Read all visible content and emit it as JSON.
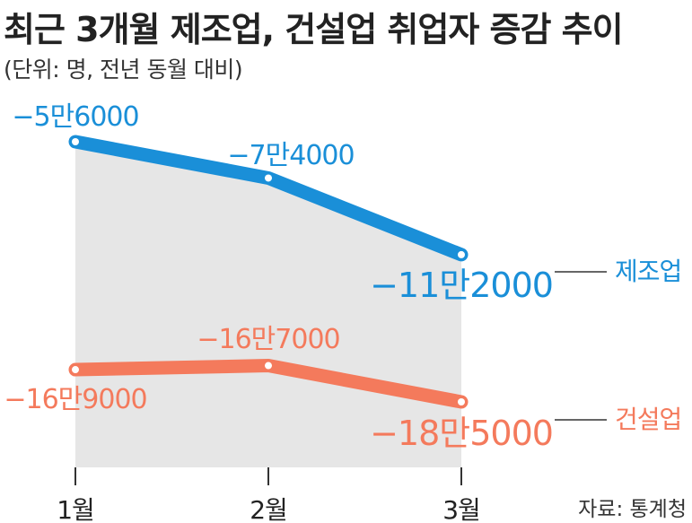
{
  "header": {
    "title": "최근 3개월 제조업, 건설업 취업자 증감 추이",
    "subtitle": "(단위: 명, 전년 동월 대비)"
  },
  "footer": {
    "source": "자료: 통계청"
  },
  "colors": {
    "manufacturing": "#1a8fd8",
    "construction": "#f47a5c",
    "area": "#e6e6e6"
  },
  "chart_data": {
    "type": "line",
    "categories": [
      "1월",
      "2월",
      "3월"
    ],
    "series": [
      {
        "name": "제조업",
        "values": [
          -56000,
          -74000,
          -112000
        ],
        "labels": [
          "−5만6000",
          "−7만4000",
          "−11만2000"
        ]
      },
      {
        "name": "건설업",
        "values": [
          -169000,
          -167000,
          -185000
        ],
        "labels": [
          "−16만9000",
          "−16만7000",
          "−18만5000"
        ]
      }
    ]
  }
}
